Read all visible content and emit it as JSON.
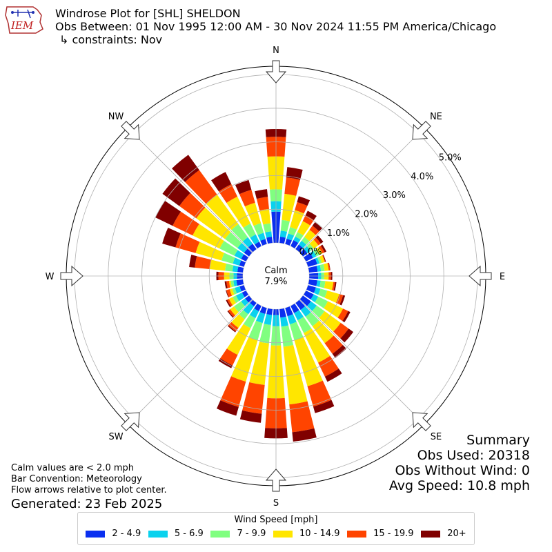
{
  "header": {
    "logo_text": "IEM",
    "title": "Windrose Plot for [SHL] SHELDON",
    "obs_between": "Obs Between: 01 Nov 1995 12:00 AM - 30 Nov 2024 11:55 PM America/Chicago",
    "constraints": "↳ constraints: Nov"
  },
  "footnotes": {
    "calm_def": "Calm values are < 2.0 mph",
    "bar_convention": "Bar Convention: Meteorology",
    "flow_arrows": "Flow arrows relative to plot center.",
    "generated": "Generated: 23 Feb 2025"
  },
  "summary": {
    "heading": "Summary",
    "obs_used": "Obs Used: 20318",
    "obs_without_wind": "Obs Without Wind: 0",
    "avg_speed": "Avg Speed: 10.8 mph"
  },
  "legend": {
    "title": "Wind Speed [mph]",
    "items": [
      {
        "label": "2 - 4.9",
        "color": "#0a2ff0"
      },
      {
        "label": "5 - 6.9",
        "color": "#0ad2ee"
      },
      {
        "label": "7 - 9.9",
        "color": "#80ff80"
      },
      {
        "label": "10 - 14.9",
        "color": "#ffe600"
      },
      {
        "label": "15 - 19.9",
        "color": "#ff4400"
      },
      {
        "label": "20+",
        "color": "#800000"
      }
    ]
  },
  "chart_data": {
    "type": "windrose",
    "calm_label": "Calm",
    "calm_value": "7.9%",
    "radial_ticks": [
      "0.0%",
      "1.0%",
      "2.0%",
      "3.0%",
      "4.0%",
      "5.0%"
    ],
    "directions_labels": [
      "N",
      "NE",
      "E",
      "SE",
      "S",
      "SW",
      "W",
      "NW"
    ],
    "bins": [
      "2 - 4.9",
      "5 - 6.9",
      "7 - 9.9",
      "10 - 14.9",
      "15 - 19.9",
      "20+"
    ],
    "sector_width_deg": 10,
    "directions_deg": [
      0,
      10,
      20,
      30,
      40,
      50,
      60,
      70,
      80,
      90,
      100,
      110,
      120,
      130,
      140,
      150,
      160,
      170,
      180,
      190,
      200,
      210,
      220,
      230,
      240,
      250,
      260,
      270,
      280,
      290,
      300,
      310,
      320,
      330,
      340,
      350
    ],
    "cumulative_pct": [
      [
        0.93,
        1.24,
        1.59,
        2.57,
        3.15,
        3.38
      ],
      [
        0.19,
        0.37,
        0.69,
        1.47,
        1.96,
        2.27
      ],
      [
        0.17,
        0.33,
        0.53,
        1.05,
        1.3,
        1.48
      ],
      [
        0.2,
        0.32,
        0.47,
        0.83,
        1.02,
        1.17
      ],
      [
        0.17,
        0.31,
        0.45,
        0.71,
        0.86,
        0.99
      ],
      [
        0.17,
        0.29,
        0.4,
        0.57,
        0.66,
        0.75
      ],
      [
        0.24,
        0.35,
        0.45,
        0.55,
        0.62,
        0.68
      ],
      [
        0.29,
        0.36,
        0.43,
        0.52,
        0.54,
        0.56
      ],
      [
        0.26,
        0.36,
        0.47,
        0.59,
        0.63,
        0.64
      ],
      [
        0.27,
        0.36,
        0.45,
        0.58,
        0.65,
        0.69
      ],
      [
        0.25,
        0.35,
        0.49,
        0.73,
        0.78,
        0.82
      ],
      [
        0.25,
        0.39,
        0.6,
        0.97,
        1.09,
        1.15
      ],
      [
        0.26,
        0.41,
        0.73,
        1.23,
        1.4,
        1.47
      ],
      [
        0.3,
        0.51,
        0.8,
        1.39,
        1.68,
        1.85
      ],
      [
        0.26,
        0.51,
        0.86,
        1.48,
        1.87,
        2.02
      ],
      [
        0.24,
        0.48,
        0.9,
        1.88,
        2.34,
        2.51
      ],
      [
        0.26,
        0.51,
        1.0,
        2.42,
        3.05,
        3.25
      ],
      [
        0.26,
        0.53,
        1.13,
        2.85,
        3.68,
        3.96
      ],
      [
        0.18,
        0.51,
        1.08,
        2.65,
        3.54,
        3.84
      ],
      [
        0.18,
        0.48,
        1.03,
        2.27,
        3.13,
        3.4
      ],
      [
        0.19,
        0.47,
        1.0,
        2.28,
        3.06,
        3.33
      ],
      [
        0.18,
        0.41,
        0.74,
        1.62,
        1.97,
        2.06
      ],
      [
        0.13,
        0.42,
        0.6,
        0.92,
        1.05,
        1.08
      ],
      [
        0.15,
        0.3,
        0.56,
        0.7,
        0.77,
        0.8
      ],
      [
        0.14,
        0.34,
        0.45,
        0.57,
        0.63,
        0.67
      ],
      [
        0.14,
        0.29,
        0.37,
        0.45,
        0.55,
        0.57
      ],
      [
        0.2,
        0.29,
        0.37,
        0.42,
        0.5,
        0.55
      ],
      [
        0.18,
        0.28,
        0.4,
        0.56,
        0.73,
        0.79
      ],
      [
        0.17,
        0.32,
        0.54,
        1.0,
        1.44,
        1.61
      ],
      [
        0.15,
        0.35,
        0.7,
        1.5,
        2.12,
        2.53
      ],
      [
        0.17,
        0.39,
        0.88,
        1.77,
        2.43,
        3.0
      ],
      [
        0.19,
        0.43,
        0.89,
        1.94,
        2.56,
        3.18
      ],
      [
        0.2,
        0.44,
        0.92,
        2.0,
        2.9,
        3.46
      ],
      [
        0.15,
        0.39,
        0.75,
        1.64,
        2.05,
        2.45
      ],
      [
        0.16,
        0.35,
        0.65,
        1.28,
        1.68,
        1.98
      ],
      [
        0.19,
        0.35,
        0.59,
        1.02,
        1.38,
        1.61
      ]
    ],
    "arrows": "flow arrows at 8 compass points pointing toward center"
  }
}
